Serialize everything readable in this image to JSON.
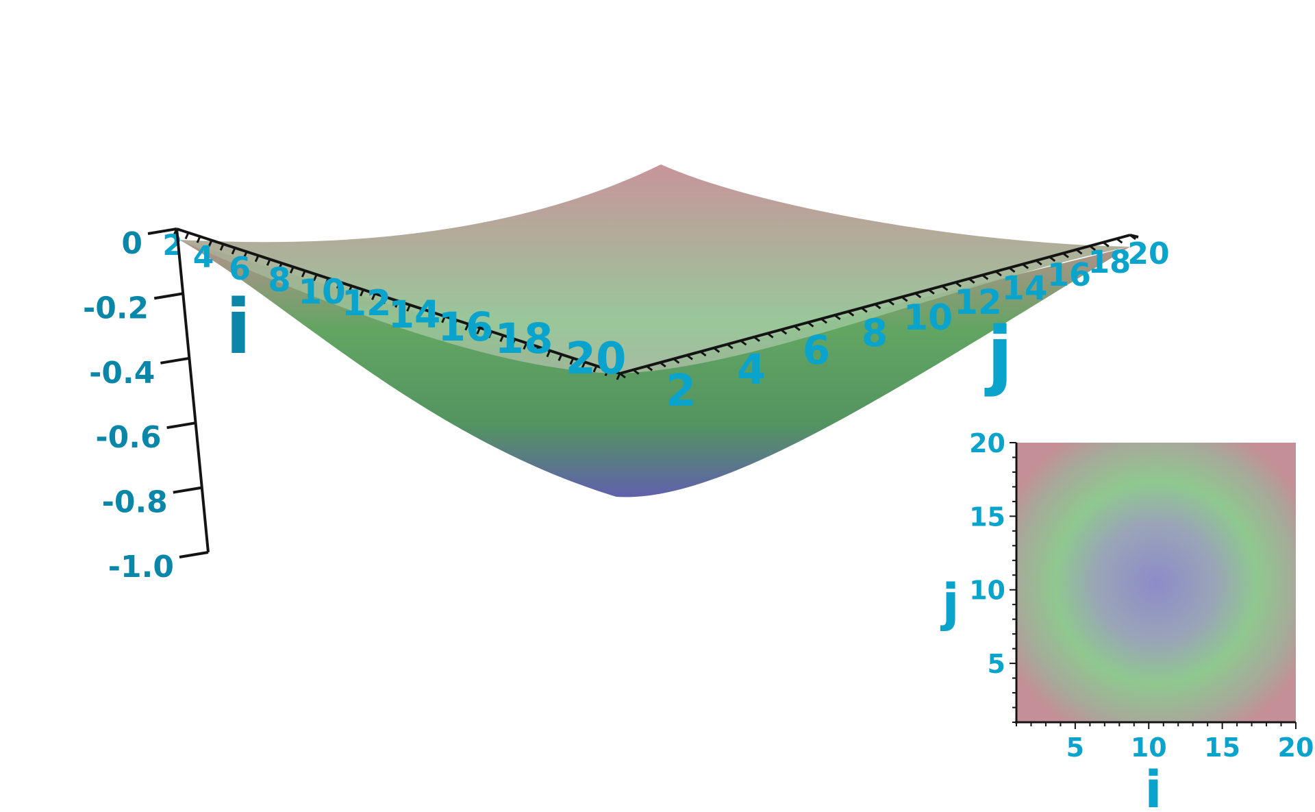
{
  "chart_data": [
    {
      "type": "surface",
      "xlabel": "i",
      "ylabel": "j",
      "x_ticks": [
        "2",
        "4",
        "6",
        "8",
        "10",
        "12",
        "14",
        "16",
        "18",
        "20"
      ],
      "y_ticks": [
        "2",
        "4",
        "6",
        "8",
        "10",
        "12",
        "14",
        "16",
        "18",
        "20"
      ],
      "z_ticks": [
        "0",
        "-0.2",
        "-0.4",
        "-0.6",
        "-0.8",
        "-1.0"
      ],
      "xlim": [
        1,
        20
      ],
      "ylim": [
        1,
        20
      ],
      "zlim": [
        -1.0,
        0
      ],
      "z_min": -0.75,
      "z_max": 0,
      "colormap": [
        "#c48f96",
        "#90c690",
        "#8c8cc8"
      ],
      "colormap_note_values": [
        0,
        -0.375,
        -0.75
      ]
    },
    {
      "type": "heatmap",
      "xlabel": "i",
      "ylabel": "j",
      "x_ticks": [
        "5",
        "10",
        "15",
        "20"
      ],
      "y_ticks": [
        "5",
        "10",
        "15",
        "20"
      ],
      "xlim": [
        1,
        20
      ],
      "ylim": [
        1,
        20
      ],
      "colormap": [
        "#c48f96",
        "#90c690",
        "#8c8cc8"
      ]
    }
  ],
  "colors": {
    "axis_label": "#0aa3cc",
    "z_axis_label": "#0a87a8",
    "axis_line": "#141414"
  }
}
